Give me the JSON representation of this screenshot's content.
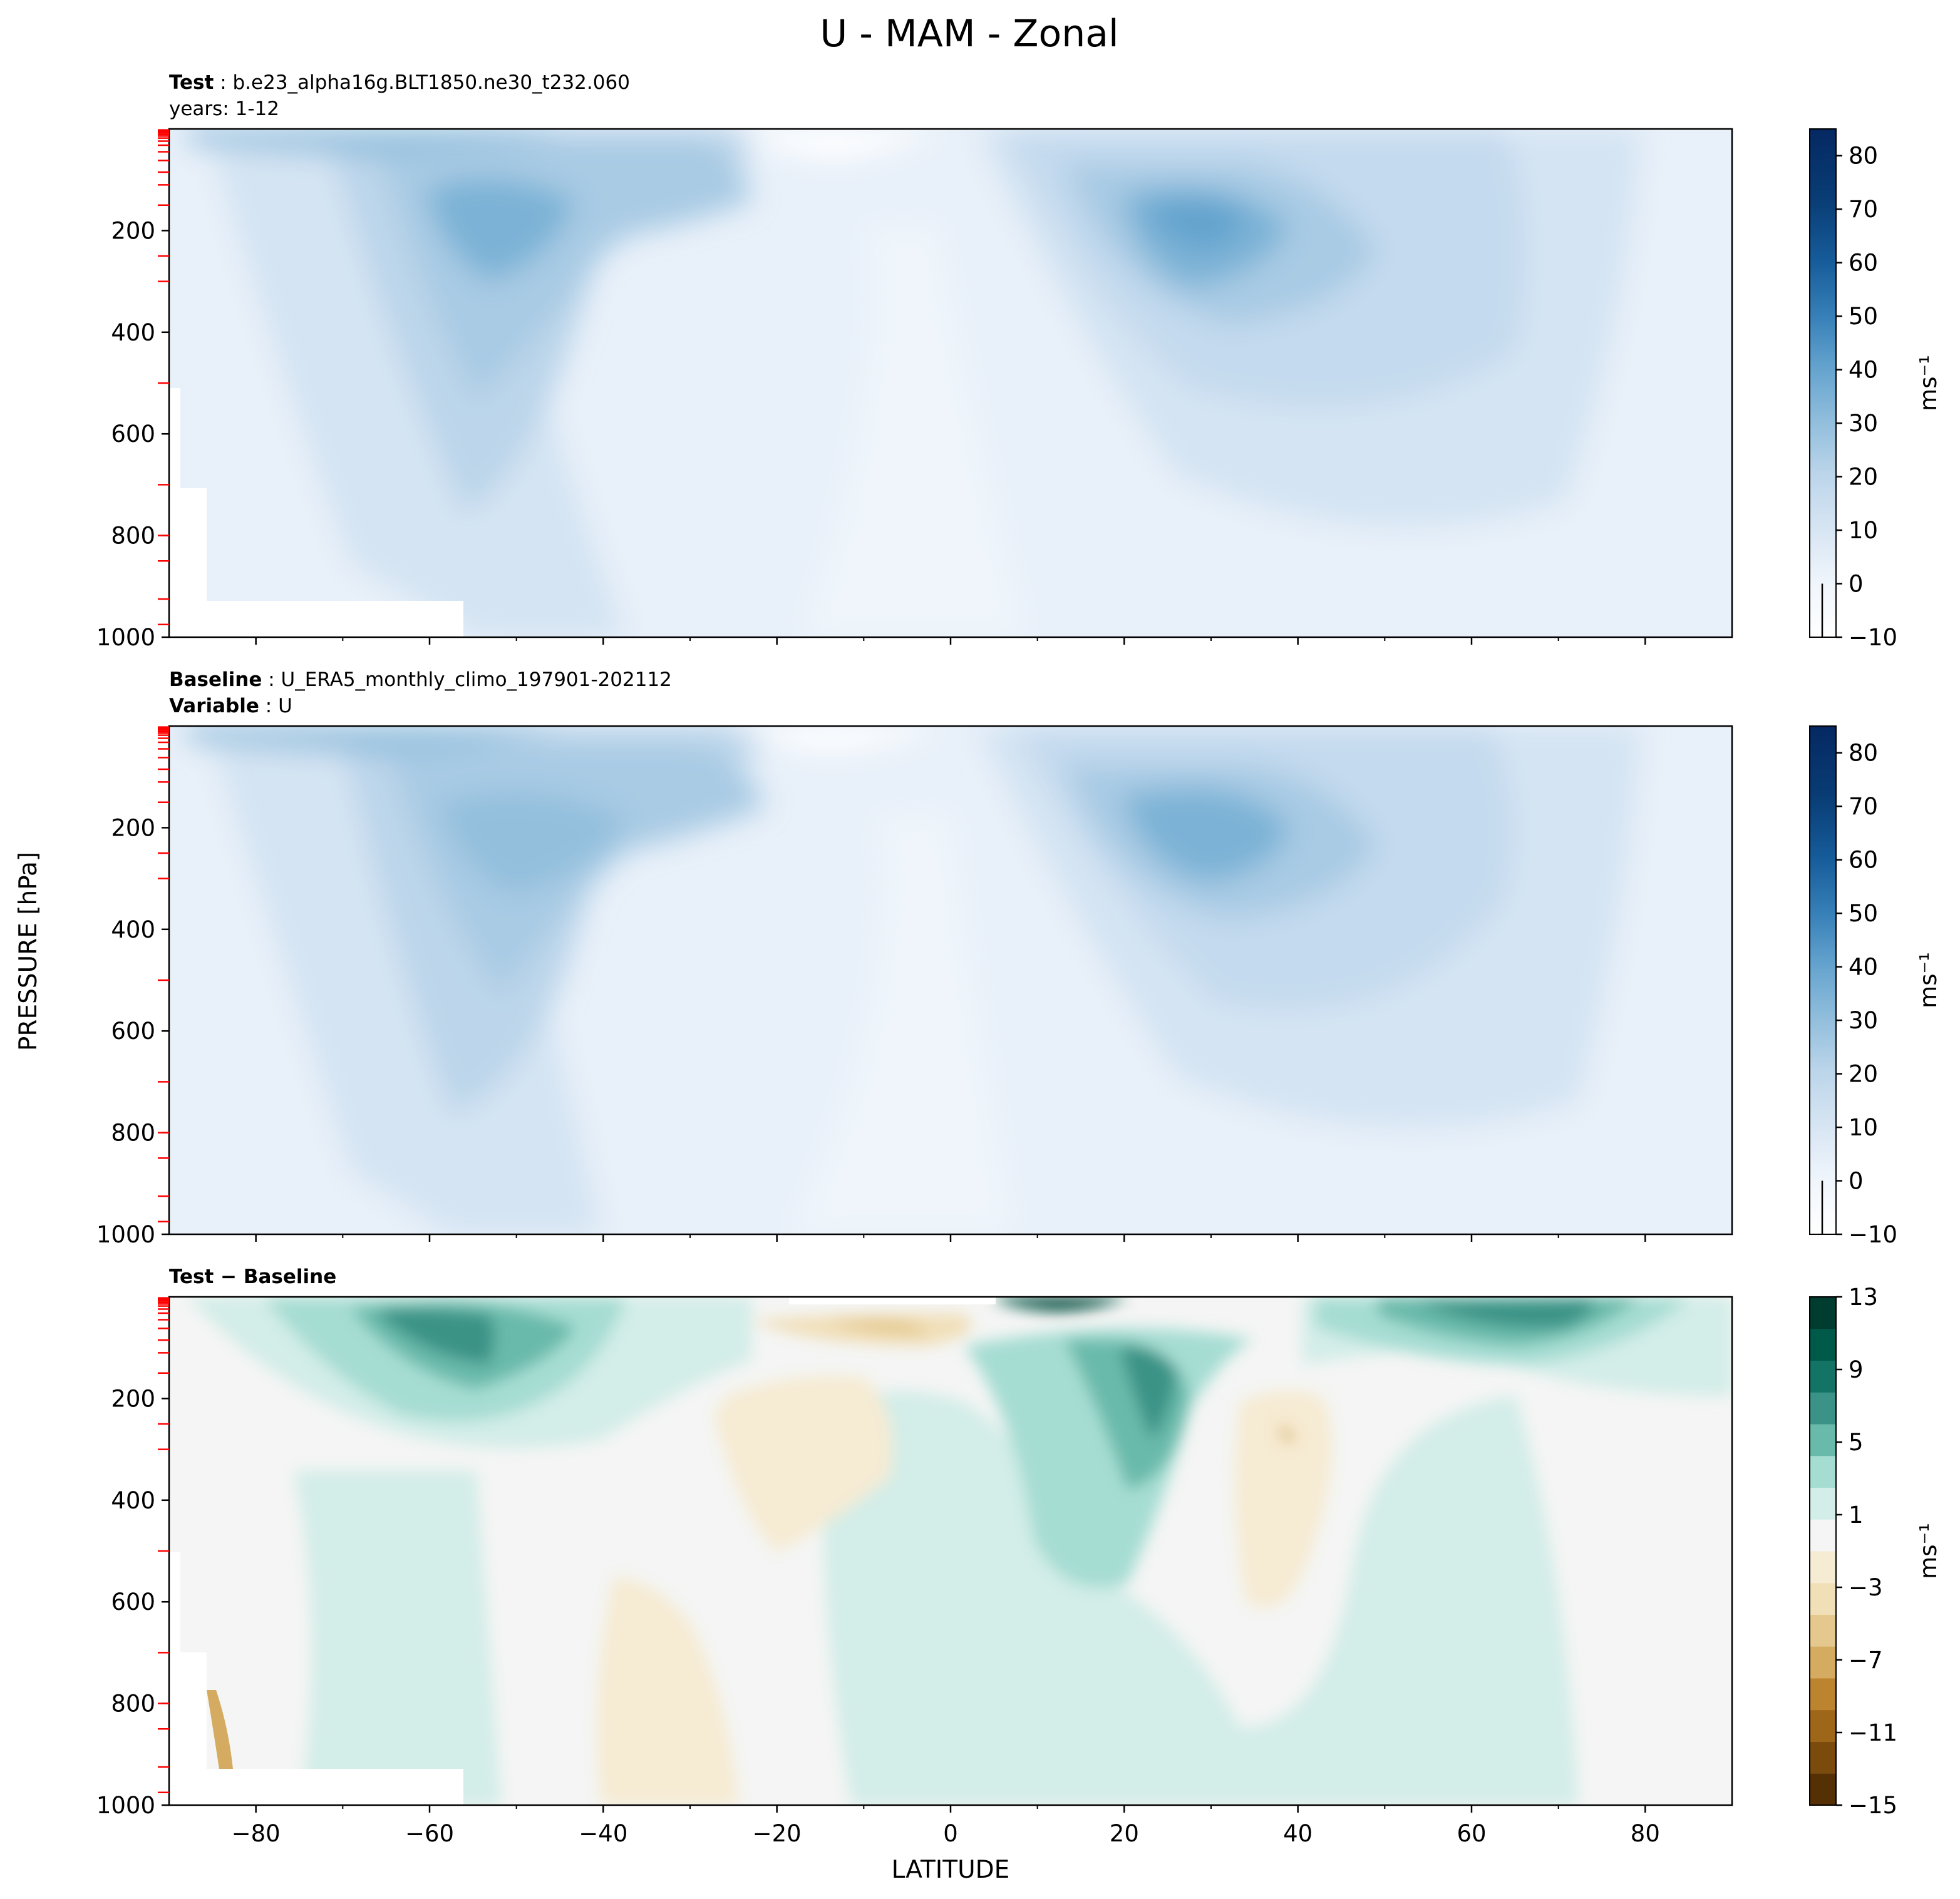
{
  "figure": {
    "title": "U - MAM - Zonal",
    "ylabel": "PRESSURE [hPa]",
    "xlabel": "LATITUDE"
  },
  "chart_data": [
    {
      "type": "heatmap",
      "panel": "test",
      "title_lines": [
        {
          "bold": "Test",
          "sep": ":",
          "text": "b.e23_alpha16g.BLT1850.ne30_t232.060"
        },
        {
          "bold": "",
          "sep": "",
          "text": "years: 1-12"
        }
      ],
      "xlim": [
        -90,
        90
      ],
      "ylim": [
        1000,
        0
      ],
      "ytick_labels": [
        "200",
        "400",
        "600",
        "800",
        "1000"
      ],
      "colorbar": {
        "label": "ms⁻¹",
        "range": [
          -10,
          85
        ],
        "tick_labels": [
          "80",
          "70",
          "60",
          "50",
          "40",
          "30",
          "20",
          "10",
          "0",
          "−10"
        ],
        "palette": [
          "#ffffff",
          "#f1f6fc",
          "#e6eff9",
          "#dae7f4",
          "#ccdeef",
          "#bcd5ea",
          "#a9cbe4",
          "#93bfdd",
          "#7cb2d6",
          "#64a3ce",
          "#4d92c4",
          "#3780b8",
          "#246eaa",
          "#165c9a",
          "#0e4b88",
          "#093d75",
          "#063069",
          "#052862"
        ]
      },
      "jets": [
        {
          "name": "SH jet core",
          "lat": -52,
          "pressure_hPa": 200,
          "max_speed": 35
        },
        {
          "name": "NH jet core",
          "lat": 27,
          "pressure_hPa": 200,
          "max_speed": 40
        }
      ]
    },
    {
      "type": "heatmap",
      "panel": "baseline",
      "title_lines": [
        {
          "bold": "Baseline",
          "sep": ":",
          "text": "U_ERA5_monthly_climo_197901-202112"
        },
        {
          "bold": "Variable",
          "sep": ":",
          "text": "U"
        }
      ],
      "xlim": [
        -90,
        90
      ],
      "ylim": [
        1000,
        0
      ],
      "ytick_labels": [
        "200",
        "400",
        "600",
        "800",
        "1000"
      ],
      "colorbar": {
        "label": "ms⁻¹",
        "range": [
          -10,
          85
        ],
        "tick_labels": [
          "80",
          "70",
          "60",
          "50",
          "40",
          "30",
          "20",
          "10",
          "0",
          "−10"
        ],
        "palette": [
          "#ffffff",
          "#f1f6fc",
          "#e6eff9",
          "#dae7f4",
          "#ccdeef",
          "#bcd5ea",
          "#a9cbe4",
          "#93bfdd",
          "#7cb2d6",
          "#64a3ce",
          "#4d92c4",
          "#3780b8",
          "#246eaa",
          "#165c9a",
          "#0e4b88",
          "#093d75",
          "#063069",
          "#052862"
        ]
      },
      "jets": [
        {
          "name": "SH jet core",
          "lat": -48,
          "pressure_hPa": 220,
          "max_speed": 32
        },
        {
          "name": "NH jet core",
          "lat": 30,
          "pressure_hPa": 200,
          "max_speed": 38
        }
      ]
    },
    {
      "type": "heatmap",
      "panel": "difference",
      "title_lines": [
        {
          "bold": "Test − Baseline",
          "sep": "",
          "text": ""
        }
      ],
      "xlim": [
        -90,
        90
      ],
      "ylim": [
        1000,
        0
      ],
      "ytick_labels": [
        "200",
        "400",
        "600",
        "800",
        "1000"
      ],
      "xtick_labels": [
        "−80",
        "−60",
        "−40",
        "−20",
        "0",
        "20",
        "40",
        "60",
        "80"
      ],
      "colorbar": {
        "label": "ms⁻¹",
        "range": [
          -15,
          13
        ],
        "tick_labels": [
          "13",
          "9",
          "5",
          "1",
          "−3",
          "−7",
          "−11",
          "−15"
        ],
        "palette": [
          "#553005",
          "#7a4b0d",
          "#9d6619",
          "#bd842f",
          "#d4ab60",
          "#e4c88e",
          "#f1dfb8",
          "#f6ebd3",
          "#f4f5f4",
          "#d3ede8",
          "#a6ddd3",
          "#69baaa",
          "#3a9386",
          "#137465",
          "#005a49",
          "#003c30"
        ]
      },
      "features": [
        {
          "name": "positive max",
          "lat": 65,
          "pressure_hPa": 40,
          "value": 11
        },
        {
          "name": "positive max",
          "lat": -55,
          "pressure_hPa": 100,
          "value": 9
        },
        {
          "name": "positive max",
          "lat": 20,
          "pressure_hPa": 200,
          "value": 9
        },
        {
          "name": "negative min",
          "lat": 38,
          "pressure_hPa": 250,
          "value": -5
        }
      ]
    }
  ]
}
